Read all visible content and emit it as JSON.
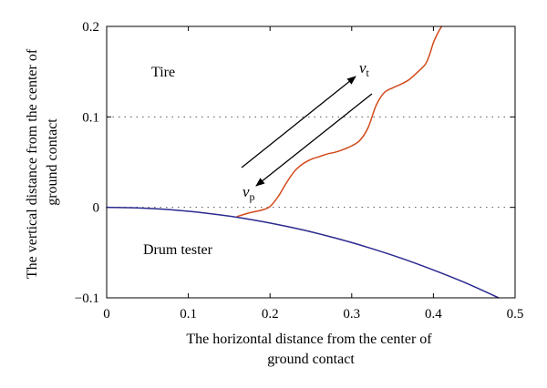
{
  "chart_data": {
    "type": "line",
    "xlabel_lines": [
      "The horizontal distance from the center of",
      "ground contact"
    ],
    "ylabel_lines": [
      "The vertical distance from the center of",
      "ground contact"
    ],
    "xlim": [
      0,
      0.5
    ],
    "ylim": [
      -0.1,
      0.2
    ],
    "x_ticks": [
      0,
      0.1,
      0.2,
      0.3,
      0.4,
      0.5
    ],
    "x_tick_labels": [
      "0",
      "0.1",
      "0.2",
      "0.3",
      "0.4",
      "0.5"
    ],
    "y_ticks": [
      -0.1,
      0,
      0.1,
      0.2
    ],
    "y_tick_labels": [
      "−0.1",
      "0",
      "0.1",
      "0.2"
    ],
    "reference_lines_y": [
      0,
      0.1
    ],
    "grid": false,
    "series": [
      {
        "color": "#d24a1b",
        "x": [
          0.16,
          0.175,
          0.19,
          0.2,
          0.21,
          0.22,
          0.23,
          0.24,
          0.25,
          0.26,
          0.27,
          0.28,
          0.29,
          0.3,
          0.31,
          0.32,
          0.33,
          0.34,
          0.35,
          0.36,
          0.37,
          0.38,
          0.39,
          0.395,
          0.4,
          0.405,
          0.41
        ],
        "y": [
          -0.01,
          -0.006,
          -0.003,
          0.001,
          0.012,
          0.027,
          0.04,
          0.048,
          0.053,
          0.056,
          0.059,
          0.061,
          0.064,
          0.068,
          0.074,
          0.088,
          0.113,
          0.127,
          0.132,
          0.136,
          0.141,
          0.149,
          0.158,
          0.168,
          0.182,
          0.192,
          0.2
        ]
      },
      {
        "color": "#2a2a8f",
        "x": [
          0,
          0.04,
          0.08,
          0.12,
          0.16,
          0.2,
          0.24,
          0.28,
          0.32,
          0.36,
          0.4,
          0.44,
          0.48
        ],
        "y": [
          0,
          -0.0007,
          -0.0027,
          -0.0062,
          -0.011,
          -0.0173,
          -0.0249,
          -0.0339,
          -0.0443,
          -0.056,
          -0.0692,
          -0.0837,
          -0.1
        ]
      }
    ],
    "annotations": {
      "tire": "Tire",
      "drum": "Drum tester",
      "vt_symbol": "v",
      "vt_subscript": "t",
      "vp_symbol": "v",
      "vp_subscript": "p"
    }
  }
}
